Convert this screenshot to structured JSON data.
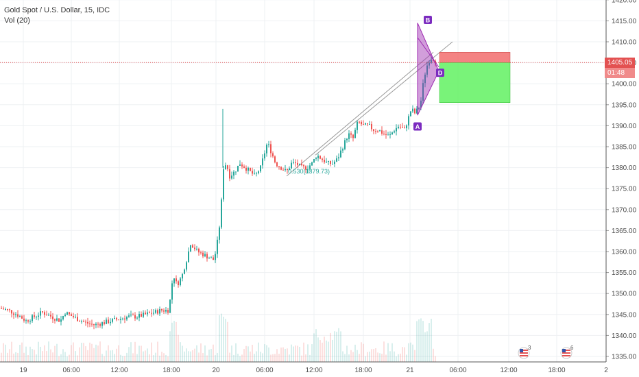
{
  "legend": {
    "title": "Gold Spot / U.S. Dollar, 15, IDC",
    "indicator": "Vol (20)"
  },
  "price_label": {
    "price": "1405.05",
    "countdown": "01:48"
  },
  "pattern_labels": {
    "a": "A",
    "b": "B",
    "d": "D"
  },
  "fib_label": "0.530(1379.73)",
  "event_badges": [
    {
      "count": "3"
    },
    {
      "count": "6"
    }
  ],
  "colors": {
    "up": "#26a69a",
    "down": "#ef5350",
    "pattern": "#9c27b0",
    "stop_zone": "#f26d6d",
    "target_zone": "#6af26a"
  },
  "chart_data": {
    "type": "candlestick",
    "title": "Gold Spot / U.S. Dollar, 15, IDC",
    "ylim": [
      1333,
      1421
    ],
    "y_ticks": [
      1335,
      1340,
      1345,
      1350,
      1355,
      1360,
      1365,
      1370,
      1375,
      1380,
      1385,
      1390,
      1395,
      1400,
      1405,
      1410,
      1415,
      1420
    ],
    "y_tick_labels": [
      "1335.00",
      "1340.00",
      "1345.00",
      "1350.00",
      "1355.00",
      "1360.00",
      "1365.00",
      "1370.00",
      "1375.00",
      "1380.00",
      "1385.00",
      "1390.00",
      "1395.00",
      "1400.00",
      "1405.00",
      "1410.00",
      "1415.00",
      "1420.00"
    ],
    "x_tick_labels": [
      "19",
      "06:00",
      "12:00",
      "18:00",
      "20",
      "06:00",
      "12:00",
      "18:00",
      "21",
      "06:00",
      "12:00",
      "18:00",
      "2"
    ],
    "current_price": 1405.05,
    "close_path": [
      [
        0,
        1346.5
      ],
      [
        12,
        1346
      ],
      [
        25,
        1345
      ],
      [
        38,
        1343.5
      ],
      [
        50,
        1344.5
      ],
      [
        62,
        1345.5
      ],
      [
        75,
        1344.5
      ],
      [
        88,
        1343.5
      ],
      [
        95,
        1345.5
      ],
      [
        100,
        1345
      ],
      [
        112,
        1344
      ],
      [
        125,
        1343
      ],
      [
        138,
        1342.5
      ],
      [
        150,
        1343
      ],
      [
        162,
        1343.5
      ],
      [
        175,
        1344
      ],
      [
        188,
        1344.5
      ],
      [
        200,
        1344.5
      ],
      [
        212,
        1345
      ],
      [
        225,
        1345.5
      ],
      [
        235,
        1346
      ],
      [
        245,
        1346
      ],
      [
        250,
        1350
      ],
      [
        252,
        1355
      ],
      [
        258,
        1352
      ],
      [
        265,
        1354
      ],
      [
        272,
        1358
      ],
      [
        278,
        1362
      ],
      [
        288,
        1360
      ],
      [
        300,
        1359
      ],
      [
        312,
        1358
      ],
      [
        316,
        1361
      ],
      [
        320,
        1366
      ],
      [
        323,
        1372
      ],
      [
        326,
        1380
      ],
      [
        330,
        1381
      ],
      [
        335,
        1378
      ],
      [
        342,
        1379
      ],
      [
        350,
        1381
      ],
      [
        358,
        1380
      ],
      [
        365,
        1379
      ],
      [
        372,
        1378
      ],
      [
        380,
        1380
      ],
      [
        385,
        1383
      ],
      [
        390,
        1386
      ],
      [
        395,
        1384
      ],
      [
        402,
        1381
      ],
      [
        410,
        1380
      ],
      [
        418,
        1379
      ],
      [
        425,
        1381
      ],
      [
        432,
        1381
      ],
      [
        440,
        1380
      ],
      [
        448,
        1380
      ],
      [
        455,
        1381
      ],
      [
        462,
        1383
      ],
      [
        470,
        1382
      ],
      [
        478,
        1381
      ],
      [
        485,
        1381
      ],
      [
        492,
        1382
      ],
      [
        500,
        1385
      ],
      [
        508,
        1388
      ],
      [
        515,
        1387
      ],
      [
        522,
        1391
      ],
      [
        530,
        1390
      ],
      [
        538,
        1390
      ],
      [
        545,
        1389
      ],
      [
        552,
        1389
      ],
      [
        560,
        1388
      ],
      [
        568,
        1387.5
      ],
      [
        575,
        1389
      ],
      [
        582,
        1390
      ],
      [
        590,
        1389
      ],
      [
        596,
        1392
      ],
      [
        600,
        1394
      ],
      [
        605,
        1393
      ],
      [
        610,
        1394
      ],
      [
        614,
        1396
      ],
      [
        618,
        1401
      ],
      [
        622,
        1404
      ],
      [
        627,
        1406
      ],
      [
        632,
        1406
      ],
      [
        637,
        1405
      ]
    ],
    "annotations": {
      "pattern_points": {
        "A": {
          "price": 1392.5
        },
        "B": {
          "price": 1414.5
        },
        "D": {
          "price": 1403
        }
      },
      "stop_zone": {
        "from": 1405.05,
        "to": 1407.5
      },
      "target_zone": {
        "from": 1395.5,
        "to": 1405.05
      },
      "channel": true
    },
    "grid": true
  }
}
